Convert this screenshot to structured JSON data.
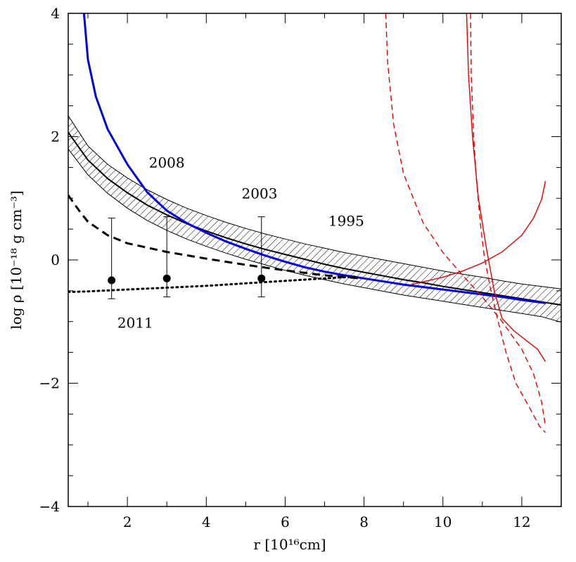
{
  "chart_data": {
    "type": "line",
    "title": "",
    "xlabel": "r  [10¹⁶cm]",
    "ylabel": "log ρ   [10⁻¹⁸ g cm⁻³]",
    "xlim": [
      0.5,
      13.0
    ],
    "ylim": [
      -4,
      4
    ],
    "xticks": [
      2,
      4,
      6,
      8,
      10,
      12
    ],
    "yticks": [
      -4,
      -2,
      0,
      2,
      4
    ],
    "xtick_labels": [
      "2",
      "4",
      "6",
      "8",
      "10",
      "12"
    ],
    "ytick_labels": [
      "−4",
      "−2",
      "0",
      "2",
      "4"
    ],
    "grid": false,
    "legend": "none",
    "colors": {
      "blue": "#0000e0",
      "red": "#e00000",
      "black": "#000000"
    },
    "annotations": [
      {
        "text": "2008",
        "x": 3.0,
        "y": 1.5
      },
      {
        "text": "2003",
        "x": 5.35,
        "y": 1.0
      },
      {
        "text": "1995",
        "x": 7.55,
        "y": 0.55
      },
      {
        "text": "2011",
        "x": 2.2,
        "y": -1.1
      }
    ],
    "points": [
      {
        "x": 1.6,
        "y": -0.33,
        "ylow": -0.63,
        "yhigh": 0.68
      },
      {
        "x": 3.0,
        "y": -0.3,
        "ylow": -0.6,
        "yhigh": 0.7
      },
      {
        "x": 5.4,
        "y": -0.3,
        "ylow": -0.6,
        "yhigh": 0.7
      }
    ],
    "band": {
      "upper": [
        [
          0.5,
          2.34
        ],
        [
          1,
          1.85
        ],
        [
          1.5,
          1.55
        ],
        [
          2,
          1.33
        ],
        [
          2.5,
          1.14
        ],
        [
          3,
          0.98
        ],
        [
          3.5,
          0.84
        ],
        [
          4,
          0.72
        ],
        [
          4.5,
          0.61
        ],
        [
          5,
          0.51
        ],
        [
          5.5,
          0.42
        ],
        [
          6,
          0.34
        ],
        [
          6.5,
          0.26
        ],
        [
          7,
          0.19
        ],
        [
          7.5,
          0.12
        ],
        [
          8,
          0.06
        ],
        [
          8.5,
          0.0
        ],
        [
          9,
          -0.06
        ],
        [
          9.5,
          -0.12
        ],
        [
          10,
          -0.18
        ],
        [
          10.5,
          -0.23
        ],
        [
          11,
          -0.28
        ],
        [
          11.5,
          -0.34
        ],
        [
          12,
          -0.39
        ],
        [
          12.5,
          -0.43
        ],
        [
          13,
          -0.47
        ]
      ],
      "lower": [
        [
          0.5,
          1.8
        ],
        [
          1,
          1.38
        ],
        [
          1.5,
          1.08
        ],
        [
          2,
          0.84
        ],
        [
          2.5,
          0.64
        ],
        [
          3,
          0.48
        ],
        [
          3.5,
          0.34
        ],
        [
          4,
          0.22
        ],
        [
          4.5,
          0.11
        ],
        [
          5,
          0.01
        ],
        [
          5.5,
          -0.08
        ],
        [
          6,
          -0.17
        ],
        [
          6.5,
          -0.25
        ],
        [
          7,
          -0.32
        ],
        [
          7.5,
          -0.39
        ],
        [
          8,
          -0.45
        ],
        [
          8.5,
          -0.51
        ],
        [
          9,
          -0.57
        ],
        [
          9.5,
          -0.62
        ],
        [
          10,
          -0.67
        ],
        [
          10.5,
          -0.72
        ],
        [
          11,
          -0.77
        ],
        [
          11.5,
          -0.82
        ],
        [
          12,
          -0.87
        ],
        [
          12.5,
          -0.92
        ],
        [
          13,
          -1.01
        ]
      ]
    },
    "series": [
      {
        "color": "#000000",
        "style": "solid",
        "width": 2,
        "points": [
          [
            0.5,
            2.07
          ],
          [
            1,
            1.62
          ],
          [
            1.5,
            1.32
          ],
          [
            2,
            1.09
          ],
          [
            2.5,
            0.89
          ],
          [
            3,
            0.73
          ],
          [
            3.5,
            0.59
          ],
          [
            4,
            0.47
          ],
          [
            4.5,
            0.36
          ],
          [
            5,
            0.26
          ],
          [
            5.5,
            0.17
          ],
          [
            6,
            0.09
          ],
          [
            6.5,
            0.01
          ],
          [
            7,
            -0.07
          ],
          [
            7.5,
            -0.14
          ],
          [
            8,
            -0.2
          ],
          [
            8.5,
            -0.26
          ],
          [
            9,
            -0.32
          ],
          [
            9.5,
            -0.37
          ],
          [
            10,
            -0.43
          ],
          [
            10.5,
            -0.48
          ],
          [
            11,
            -0.53
          ],
          [
            11.5,
            -0.58
          ],
          [
            12,
            -0.63
          ],
          [
            12.5,
            -0.68
          ],
          [
            13,
            -0.73
          ]
        ]
      },
      {
        "color": "#0000e0",
        "style": "solid",
        "width": 3,
        "points": [
          [
            0.9,
            4.0
          ],
          [
            1.0,
            3.25
          ],
          [
            1.2,
            2.65
          ],
          [
            1.5,
            2.12
          ],
          [
            2,
            1.55
          ],
          [
            2.5,
            1.1
          ],
          [
            3,
            0.8
          ],
          [
            3.5,
            0.6
          ],
          [
            4,
            0.44
          ],
          [
            4.5,
            0.3
          ],
          [
            5,
            0.18
          ],
          [
            5.5,
            0.07
          ],
          [
            6,
            -0.03
          ],
          [
            6.5,
            -0.12
          ],
          [
            7,
            -0.19
          ],
          [
            7.5,
            -0.25
          ],
          [
            8,
            -0.3
          ],
          [
            8.5,
            -0.35
          ],
          [
            9,
            -0.4
          ],
          [
            9.5,
            -0.44
          ],
          [
            10,
            -0.48
          ],
          [
            10.5,
            -0.52
          ],
          [
            11,
            -0.56
          ],
          [
            11.5,
            -0.6
          ],
          [
            12,
            -0.65
          ],
          [
            12.6,
            -0.7
          ]
        ]
      },
      {
        "color": "#000000",
        "style": "dashed",
        "width": 3,
        "points": [
          [
            0.5,
            1.05
          ],
          [
            0.8,
            0.78
          ],
          [
            1,
            0.62
          ],
          [
            1.5,
            0.4
          ],
          [
            2,
            0.27
          ],
          [
            3,
            0.13
          ],
          [
            4,
            0.02
          ],
          [
            5,
            -0.08
          ],
          [
            6,
            -0.17
          ],
          [
            7,
            -0.25
          ],
          [
            7.9,
            -0.3
          ]
        ]
      },
      {
        "color": "#000000",
        "style": "dotted",
        "width": 3,
        "points": [
          [
            0.5,
            -0.52
          ],
          [
            1,
            -0.51
          ],
          [
            2,
            -0.48
          ],
          [
            3,
            -0.45
          ],
          [
            4,
            -0.42
          ],
          [
            5,
            -0.38
          ],
          [
            6,
            -0.34
          ],
          [
            7,
            -0.3
          ],
          [
            7.8,
            -0.27
          ]
        ]
      },
      {
        "color": "#e00000",
        "style": "solid",
        "width": 1.4,
        "points": [
          [
            9.2,
            -0.4
          ],
          [
            10,
            -0.28
          ],
          [
            10.5,
            -0.18
          ],
          [
            11,
            -0.05
          ],
          [
            11.5,
            0.13
          ],
          [
            12,
            0.4
          ],
          [
            12.3,
            0.68
          ],
          [
            12.5,
            0.98
          ],
          [
            12.6,
            1.28
          ]
        ]
      },
      {
        "color": "#e00000",
        "style": "solid",
        "width": 1.4,
        "points": [
          [
            10.6,
            4.0
          ],
          [
            10.65,
            3.0
          ],
          [
            10.75,
            2.0
          ],
          [
            10.9,
            1.0
          ],
          [
            11.1,
            0.2
          ],
          [
            11.3,
            -0.5
          ],
          [
            11.5,
            -0.95
          ],
          [
            11.8,
            -1.15
          ],
          [
            12.1,
            -1.3
          ],
          [
            12.4,
            -1.45
          ],
          [
            12.6,
            -1.65
          ]
        ]
      },
      {
        "color": "#e00000",
        "style": "dashed",
        "width": 1.4,
        "points": [
          [
            8.55,
            4.0
          ],
          [
            8.6,
            3.2
          ],
          [
            8.75,
            2.2
          ],
          [
            9.0,
            1.4
          ],
          [
            9.5,
            0.6
          ],
          [
            10,
            0.12
          ],
          [
            10.5,
            -0.25
          ],
          [
            11,
            -0.6
          ],
          [
            11.5,
            -1.0
          ],
          [
            12,
            -1.45
          ],
          [
            12.3,
            -1.85
          ],
          [
            12.5,
            -2.3
          ],
          [
            12.6,
            -2.7
          ]
        ]
      },
      {
        "color": "#e00000",
        "style": "dashed",
        "width": 1.4,
        "points": [
          [
            10.7,
            4.0
          ],
          [
            10.72,
            3.0
          ],
          [
            10.78,
            2.0
          ],
          [
            10.85,
            1.3
          ],
          [
            10.95,
            0.6
          ],
          [
            11.05,
            0.05
          ],
          [
            11.2,
            -0.45
          ],
          [
            11.4,
            -1.0
          ],
          [
            11.6,
            -1.5
          ],
          [
            11.85,
            -2.0
          ],
          [
            12.2,
            -2.4
          ],
          [
            12.45,
            -2.7
          ],
          [
            12.6,
            -2.8
          ]
        ]
      }
    ]
  }
}
